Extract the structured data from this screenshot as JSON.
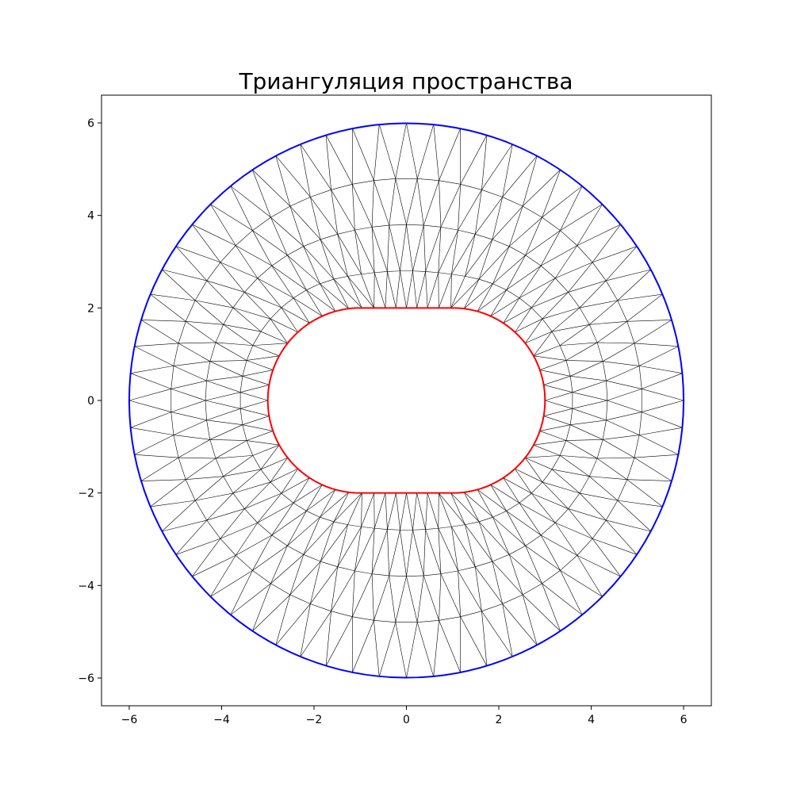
{
  "figure": {
    "title": "Триангуляция пространства"
  },
  "chart_data": {
    "type": "triangulation",
    "title": "Триангуляция пространства",
    "xlim": [
      -6.6,
      6.6
    ],
    "ylim": [
      -6.6,
      6.6
    ],
    "xticks": [
      -6,
      -4,
      -2,
      0,
      2,
      4,
      6
    ],
    "yticks": [
      -6,
      -4,
      -2,
      0,
      2,
      4,
      6
    ],
    "xtick_labels": [
      "−6",
      "−4",
      "−2",
      "0",
      "2",
      "4",
      "6"
    ],
    "ytick_labels": [
      "−6",
      "−4",
      "−2",
      "0",
      "2",
      "4",
      "6"
    ],
    "grid": false,
    "outer_boundary": {
      "shape": "circle",
      "center": [
        0,
        0
      ],
      "radius": 6,
      "color": "#0000ff"
    },
    "inner_boundary": {
      "shape": "stadium",
      "straight_half_length": 0,
      "half_width": 3,
      "half_height": 2,
      "corner_radius": 2,
      "color": "#ff0000"
    },
    "mesh_color": "#000000",
    "mesh_layers": [
      {
        "kind": "inner",
        "points": 56
      },
      {
        "kind": "ring",
        "radius_frac": 0.2,
        "points": 64
      },
      {
        "kind": "ring",
        "radius_frac": 0.45,
        "points": 64
      },
      {
        "kind": "ring",
        "radius_frac": 0.7,
        "points": 64
      },
      {
        "kind": "outer",
        "points": 64
      }
    ]
  }
}
